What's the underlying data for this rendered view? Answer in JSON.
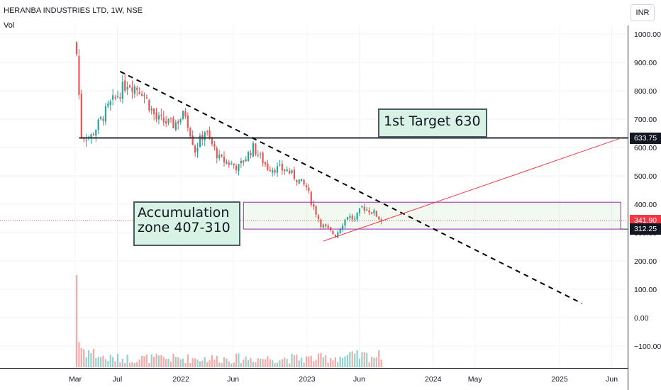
{
  "header": {
    "symbol_line": "HERANBA INDUSTRIES LTD, 1W, NSE",
    "indicator_label": "Vol",
    "currency_button": "INR"
  },
  "annotations": {
    "target_note": "1st Target 630",
    "accum_note_line1": "Accumulation",
    "accum_note_line2": "zone 407-310"
  },
  "price_labels": {
    "target_level": "633.75",
    "last_price": "341.90",
    "zone_low": "312.25"
  },
  "colors": {
    "up": "#26a69a",
    "down": "#ef5350",
    "target_line": "#2a2e39",
    "zone_border": "#9c27b0",
    "trend_up_line": "#f23645",
    "last_price_bg": "#f23645",
    "level_bg": "#131722"
  },
  "chart_data": {
    "type": "candlestick",
    "x_axis_labels": [
      "Mar",
      "Jul",
      "2022",
      "Jun",
      "2023",
      "Jun",
      "2024",
      "May",
      "2025",
      "Jun"
    ],
    "y_axis_ticks": [
      1000,
      900,
      800,
      700,
      600,
      500,
      400,
      300,
      200,
      100,
      0,
      -100
    ],
    "y_tick_labels": [
      "1000.00",
      "900.00",
      "800.00",
      "700.00",
      "600.00",
      "500.00",
      "400.00",
      "300.00",
      "200.00",
      "100.00",
      "0.00",
      "−100.00"
    ],
    "ylim": [
      -190,
      1030
    ],
    "x_range_months": [
      "2021-02",
      "2025-07"
    ],
    "price_anchors": [
      {
        "date": "2021-03-05",
        "price": 930
      },
      {
        "date": "2021-03-19",
        "price": 640
      },
      {
        "date": "2021-04-16",
        "price": 640
      },
      {
        "date": "2021-06-04",
        "price": 740
      },
      {
        "date": "2021-07-30",
        "price": 830
      },
      {
        "date": "2021-09-10",
        "price": 800
      },
      {
        "date": "2021-10-22",
        "price": 700
      },
      {
        "date": "2021-12-10",
        "price": 680
      },
      {
        "date": "2022-01-14",
        "price": 720
      },
      {
        "date": "2022-02-11",
        "price": 590
      },
      {
        "date": "2022-03-11",
        "price": 660
      },
      {
        "date": "2022-04-22",
        "price": 560
      },
      {
        "date": "2022-06-17",
        "price": 530
      },
      {
        "date": "2022-07-29",
        "price": 600
      },
      {
        "date": "2022-09-09",
        "price": 530
      },
      {
        "date": "2022-11-04",
        "price": 520
      },
      {
        "date": "2022-12-30",
        "price": 460
      },
      {
        "date": "2023-01-13",
        "price": 410
      },
      {
        "date": "2023-02-10",
        "price": 330
      },
      {
        "date": "2023-03-24",
        "price": 290
      },
      {
        "date": "2023-04-28",
        "price": 360
      },
      {
        "date": "2023-05-19",
        "price": 345
      },
      {
        "date": "2023-06-09",
        "price": 390
      },
      {
        "date": "2023-07-14",
        "price": 370
      },
      {
        "date": "2023-08-04",
        "price": 342
      }
    ],
    "volume_anchors": [
      {
        "date": "2021-03-05",
        "volume": 1
      },
      {
        "date": "2021-03-12",
        "volume": 0.5
      },
      {
        "date": "2021-05-28",
        "volume": 0.22
      },
      {
        "date": "2021-07-23",
        "volume": 0.22
      },
      {
        "date": "2023-01-20",
        "volume": 0.22
      },
      {
        "date": "2023-06-02",
        "volume": 0.28
      }
    ],
    "levels": {
      "target": 633.75,
      "last_price": 341.9,
      "zone_high": 407,
      "zone_low": 312.25
    },
    "downtrend_line": {
      "from": [
        "2021-07-09",
        868
      ],
      "to": [
        "2025-03-07",
        50
      ]
    },
    "uptrend_line": {
      "from": [
        "2023-02-17",
        270
      ],
      "to": [
        "2025-06-27",
        633
      ]
    },
    "zone_box": {
      "from": "2022-07-01",
      "to": "2025-06-27",
      "high": 407,
      "low": 312.25
    }
  }
}
